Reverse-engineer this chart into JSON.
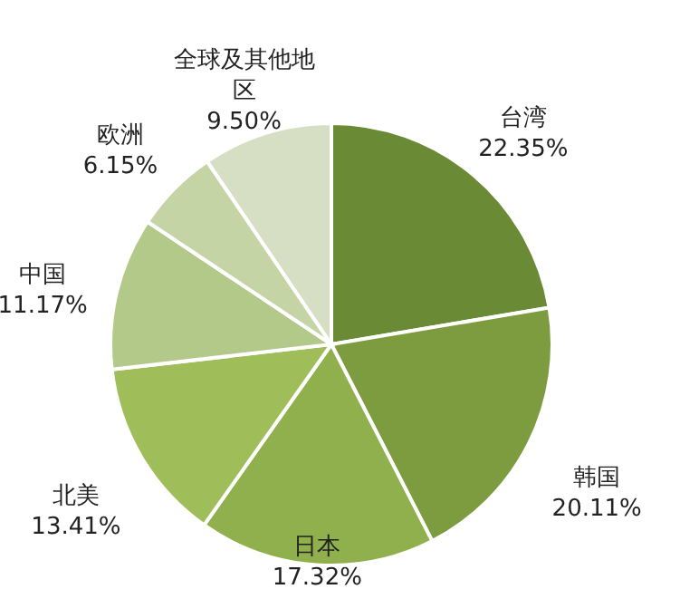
{
  "chart_data": {
    "type": "pie",
    "categories": [
      "台湾",
      "韩国",
      "日本",
      "北美",
      "中国",
      "欧洲",
      "全球及其他地区"
    ],
    "values": [
      22.35,
      20.11,
      17.32,
      13.41,
      11.17,
      6.15,
      9.5
    ],
    "value_labels": [
      "22.35%",
      "20.11%",
      "17.32%",
      "13.41%",
      "11.17%",
      "6.15%",
      "9.50%"
    ],
    "colors": [
      "#6b8a35",
      "#7d9c3f",
      "#8fb04d",
      "#9fbe5a",
      "#b3c98a",
      "#c5d4a5",
      "#d6dfc4"
    ]
  }
}
